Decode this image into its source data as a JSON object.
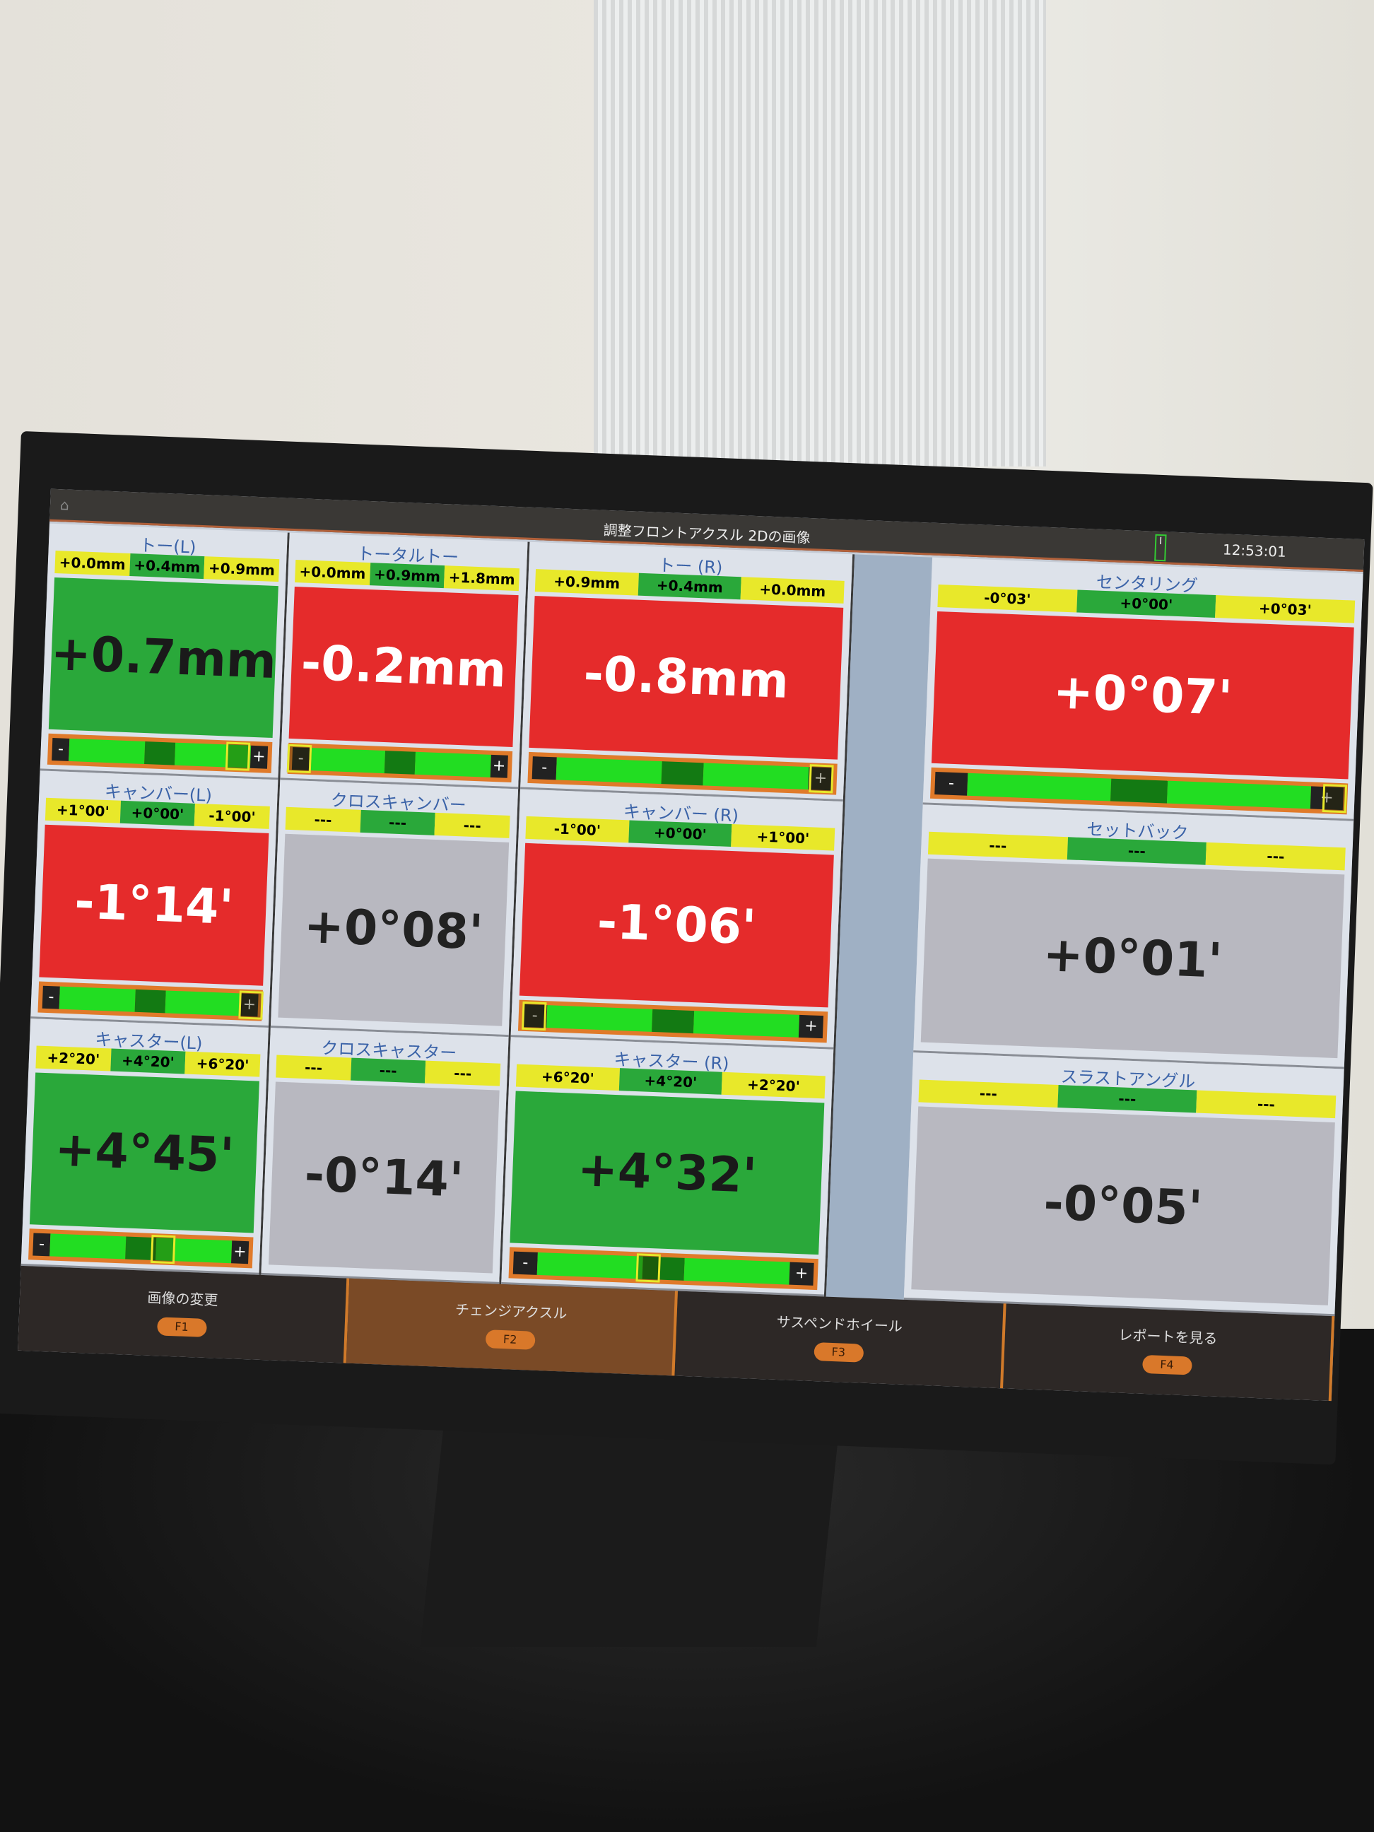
{
  "topbar": {
    "title": "調整フロントアクスル 2Dの画像",
    "time": "12:53:01"
  },
  "columns": [
    [
      {
        "name": "トー(L)",
        "ranges": [
          "+0.0mm",
          "+0.4mm",
          "+0.9mm"
        ],
        "value": "+0.7mm",
        "status": "green",
        "marker": 0.85
      },
      {
        "name": "キャンバー(L)",
        "ranges": [
          "+1°00'",
          "+0°00'",
          "-1°00'"
        ],
        "value": "-1°14'",
        "status": "red",
        "marker": 0.95
      },
      {
        "name": "キャスター(L)",
        "ranges": [
          "+2°20'",
          "+4°20'",
          "+6°20'"
        ],
        "value": "+4°45'",
        "status": "green",
        "marker": 0.6
      }
    ],
    [
      {
        "name": "トータルトー",
        "ranges": [
          "+0.0mm",
          "+0.9mm",
          "+1.8mm"
        ],
        "value": "-0.2mm",
        "status": "red",
        "marker": 0.05
      },
      {
        "name": "クロスキャンバー",
        "ranges": [
          "---",
          "---",
          "---"
        ],
        "value": "+0°08'",
        "status": "gray"
      },
      {
        "name": "クロスキャスター",
        "ranges": [
          "---",
          "---",
          "---"
        ],
        "value": "-0°14'",
        "status": "gray"
      }
    ],
    [
      {
        "name": "トー (R)",
        "ranges": [
          "+0.9mm",
          "+0.4mm",
          "+0.0mm"
        ],
        "value": "-0.8mm",
        "status": "red",
        "marker": 0.95
      },
      {
        "name": "キャンバー (R)",
        "ranges": [
          "-1°00'",
          "+0°00'",
          "+1°00'"
        ],
        "value": "-1°06'",
        "status": "red",
        "marker": 0.05
      },
      {
        "name": "キャスター (R)",
        "ranges": [
          "+6°20'",
          "+4°20'",
          "+2°20'"
        ],
        "value": "+4°32'",
        "status": "green",
        "marker": 0.45
      }
    ],
    [
      {
        "name": "センタリング",
        "ranges": [
          "-0°03'",
          "+0°00'",
          "+0°03'"
        ],
        "value": "+0°07'",
        "status": "red",
        "marker": 0.97
      },
      {
        "name": "セットバック",
        "ranges": [
          "---",
          "---",
          "---"
        ],
        "value": "+0°01'",
        "status": "gray"
      },
      {
        "name": "スラストアングル",
        "ranges": [
          "---",
          "---",
          "---"
        ],
        "value": "-0°05'",
        "status": "gray"
      }
    ]
  ],
  "bottom": [
    {
      "label": "画像の変更",
      "key": "F1"
    },
    {
      "label": "チェンジアクスル",
      "key": "F2",
      "active": true
    },
    {
      "label": "サスペンドホイール",
      "key": "F3"
    },
    {
      "label": "レポートを見る",
      "key": "F4"
    }
  ],
  "colors": {
    "red": "#e52b2b",
    "green": "#2aa83a",
    "yellow": "#e8e82a",
    "orange": "#e07a2a"
  }
}
